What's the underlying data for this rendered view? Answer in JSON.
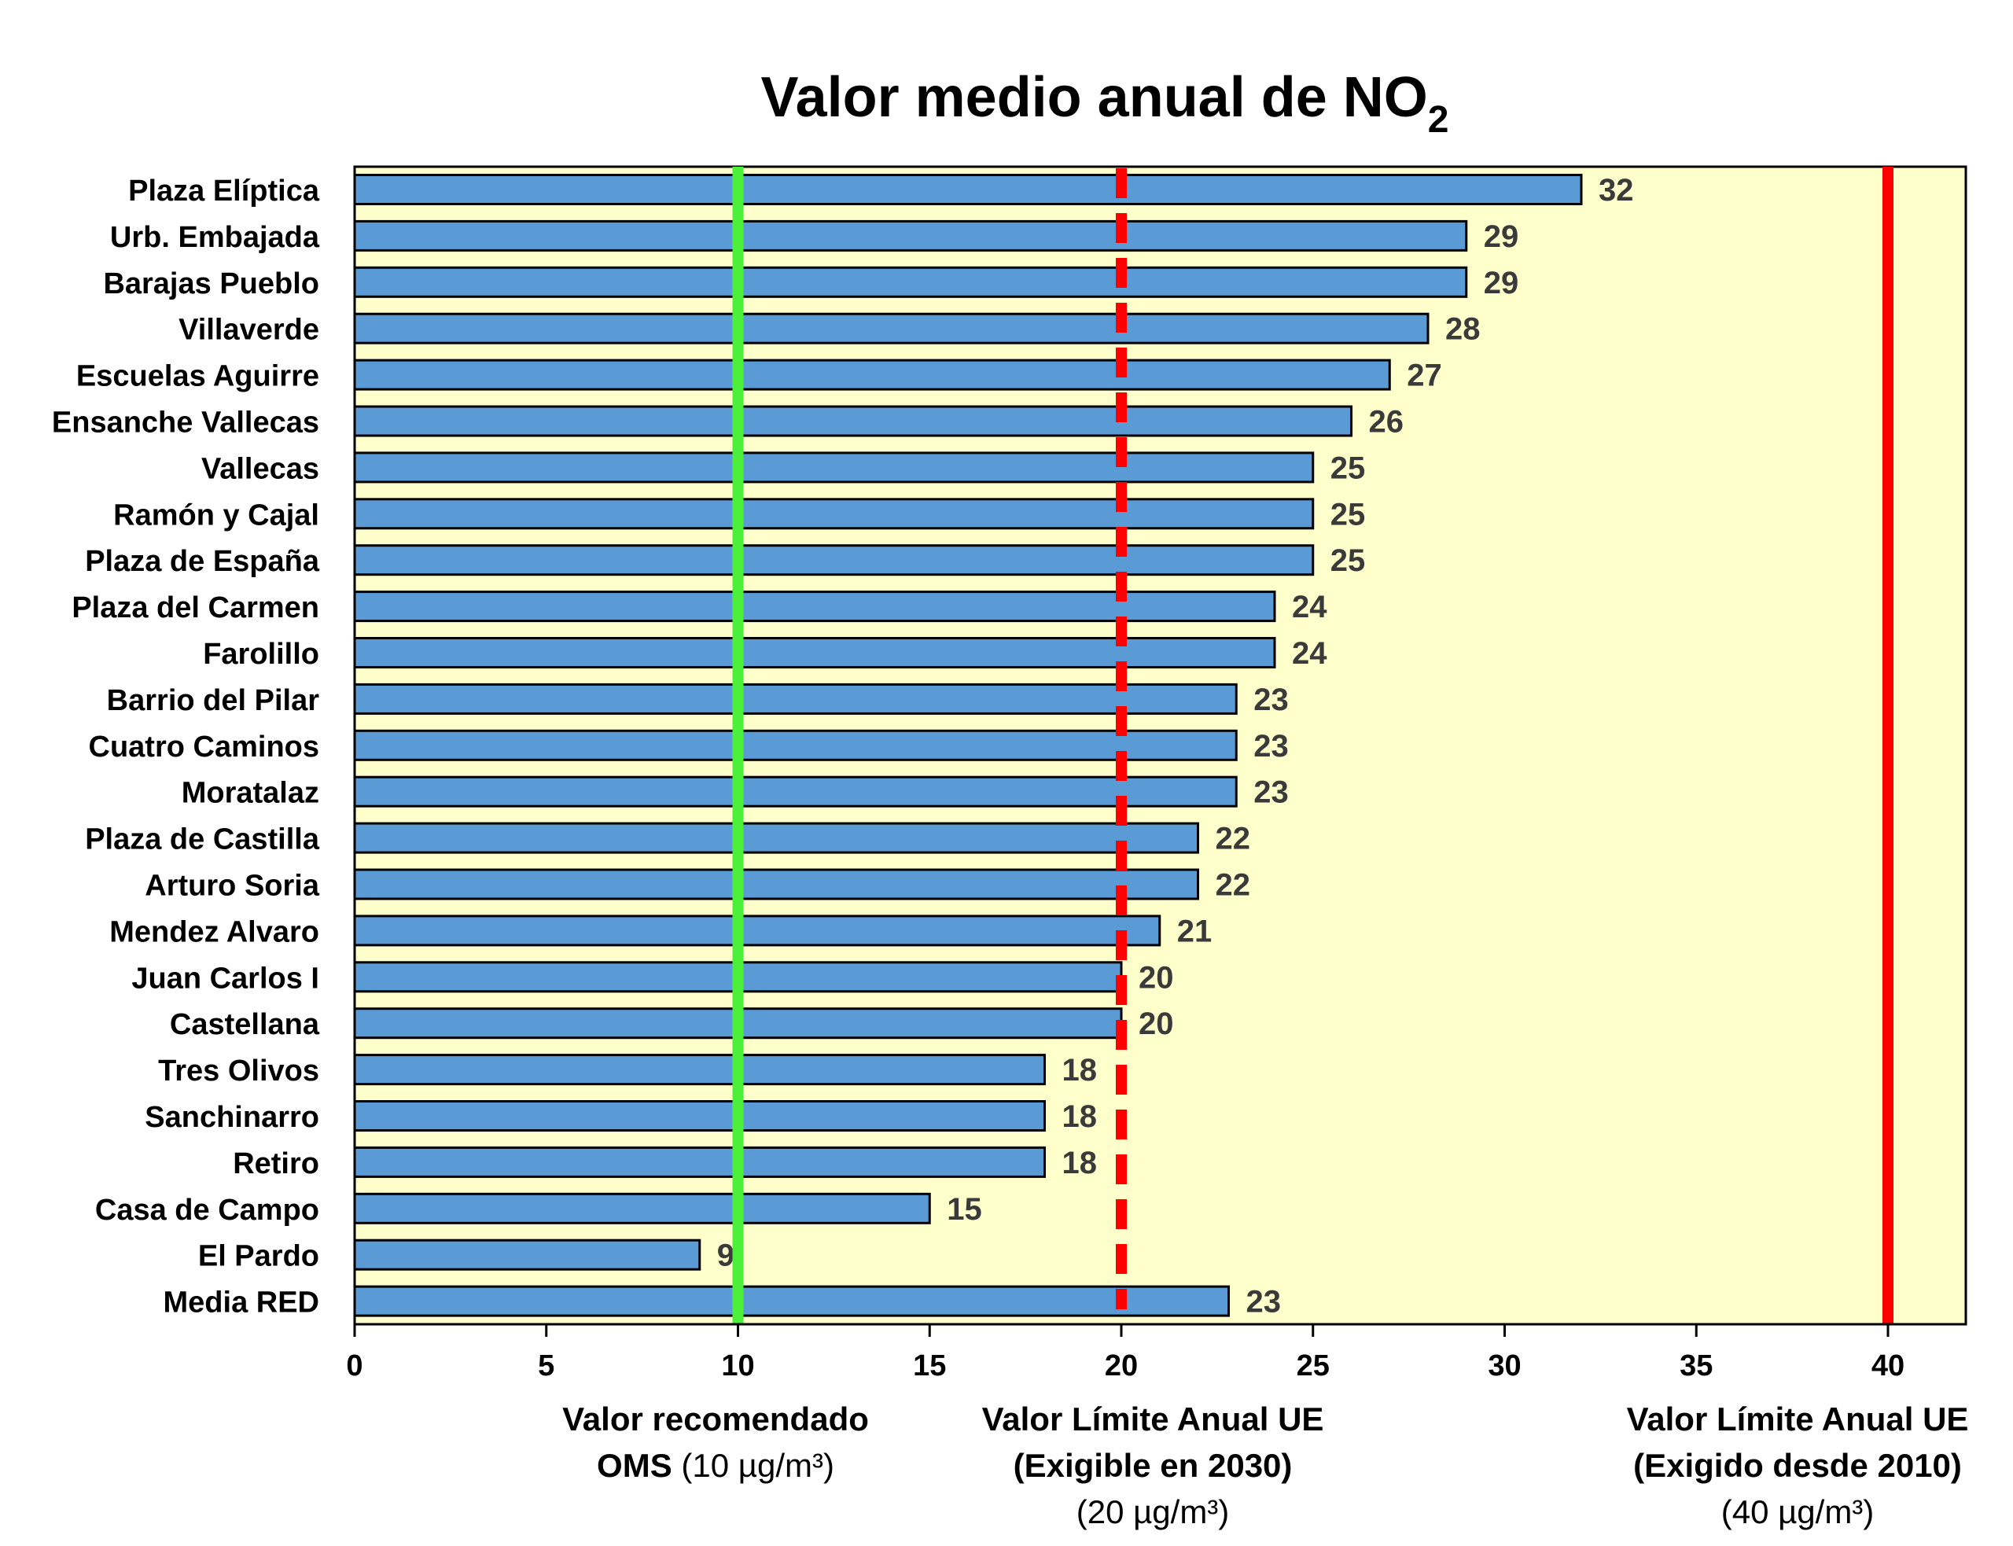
{
  "chart_data": {
    "type": "bar",
    "orientation": "horizontal",
    "title": "Valor medio anual de NO",
    "title_subscript": "2",
    "categories": [
      "Plaza Elíptica",
      "Urb. Embajada",
      "Barajas Pueblo",
      "Villaverde",
      "Escuelas Aguirre",
      "Ensanche Vallecas",
      "Vallecas",
      "Ramón y Cajal",
      "Plaza de España",
      "Plaza del Carmen",
      "Farolillo",
      "Barrio del Pilar",
      "Cuatro Caminos",
      "Moratalaz",
      "Plaza de Castilla",
      "Arturo Soria",
      "Mendez Alvaro",
      "Juan Carlos I",
      "Castellana",
      "Tres Olivos",
      "Sanchinarro",
      "Retiro",
      "Casa de Campo",
      "El Pardo",
      "Media RED"
    ],
    "values": [
      32,
      29,
      29,
      28,
      27,
      26,
      25,
      25,
      25,
      24,
      24,
      23,
      23,
      23,
      22,
      22,
      21,
      20,
      20,
      18,
      18,
      18,
      15,
      9,
      22.8
    ],
    "value_labels": [
      "32",
      "29",
      "29",
      "28",
      "27",
      "26",
      "25",
      "25",
      "25",
      "24",
      "24",
      "23",
      "23",
      "23",
      "22",
      "22",
      "21",
      "20",
      "20",
      "18",
      "18",
      "18",
      "15",
      "9",
      "23"
    ],
    "xlim": [
      0,
      42
    ],
    "xticks": [
      0,
      5,
      10,
      15,
      20,
      25,
      30,
      35,
      40
    ],
    "xtick_labels": [
      "0",
      "5",
      "10",
      "15",
      "20",
      "25",
      "30",
      "35",
      "40"
    ],
    "xlabel": "",
    "ylabel": "",
    "grid": false,
    "reference_lines": [
      {
        "value": 10,
        "style": "solid",
        "color": "#4cf03a",
        "label_lines": [
          [
            "Valor recomendado",
            ""
          ],
          [
            "OMS",
            " (10 µg/m³)"
          ]
        ]
      },
      {
        "value": 20,
        "style": "dashed",
        "color": "#ff0000",
        "label_lines": [
          [
            "Valor Límite Anual UE",
            ""
          ],
          [
            "(Exigible en 2030)",
            ""
          ],
          [
            "",
            "(20 µg/m³)"
          ]
        ]
      },
      {
        "value": 40,
        "style": "solid",
        "color": "#ff0000",
        "label_lines": [
          [
            "Valor Límite Anual UE",
            ""
          ],
          [
            "(Exigido desde 2010)",
            ""
          ],
          [
            "",
            "(40 µg/m³)"
          ]
        ]
      }
    ]
  },
  "colors": {
    "bar_fill": "#5b9bd5",
    "bar_stroke": "#000000",
    "plot_background": "#ffffcc",
    "value_label": "#3a3a3a"
  }
}
